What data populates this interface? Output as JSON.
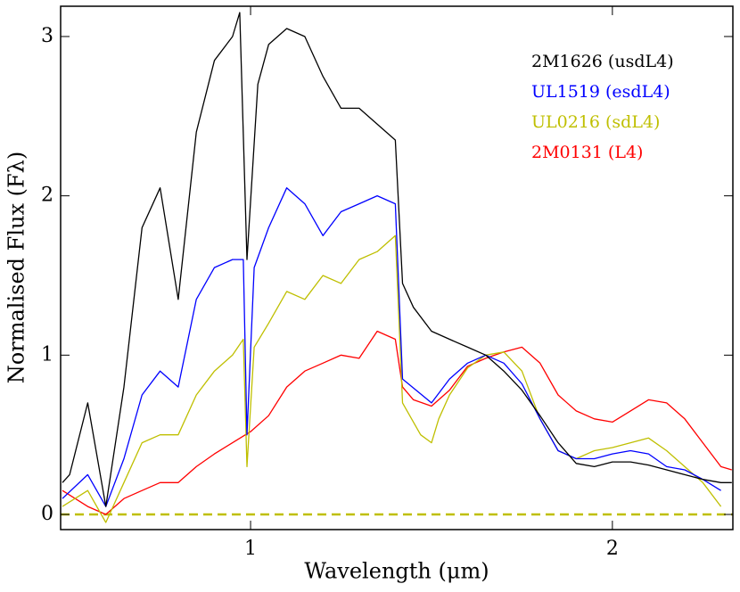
{
  "chart_data": {
    "type": "line",
    "xlabel": "Wavelength (μm)",
    "ylabel": "Normalised Flux (Fλ)",
    "xlim": [
      0.475,
      2.333
    ],
    "ylim": [
      -0.095,
      3.19
    ],
    "xticks": [
      1,
      2
    ],
    "yticks": [
      0,
      1,
      2,
      3
    ],
    "legend": "upper right",
    "reference_line": {
      "value": 0,
      "color": "#bfbf00"
    },
    "series": [
      {
        "name": "2M1626 (usdL4)",
        "color": "#000000",
        "x": [
          0.48,
          0.5,
          0.55,
          0.6,
          0.65,
          0.7,
          0.75,
          0.8,
          0.85,
          0.9,
          0.95,
          0.97,
          0.99,
          1.02,
          1.05,
          1.1,
          1.15,
          1.2,
          1.25,
          1.3,
          1.35,
          1.4,
          1.42,
          1.45,
          1.5,
          1.55,
          1.6,
          1.65,
          1.7,
          1.75,
          1.8,
          1.85,
          1.9,
          1.95,
          2.0,
          2.05,
          2.1,
          2.15,
          2.2,
          2.25,
          2.3,
          2.33
        ],
        "values": [
          0.2,
          0.25,
          0.7,
          0.05,
          0.8,
          1.8,
          2.05,
          1.35,
          2.4,
          2.85,
          3.0,
          3.15,
          1.6,
          2.7,
          2.95,
          3.05,
          3.0,
          2.75,
          2.55,
          2.55,
          2.45,
          2.35,
          1.45,
          1.3,
          1.15,
          1.1,
          1.05,
          1.0,
          0.9,
          0.78,
          0.62,
          0.45,
          0.32,
          0.3,
          0.33,
          0.33,
          0.31,
          0.28,
          0.25,
          0.22,
          0.2,
          0.2
        ]
      },
      {
        "name": "UL1519 (esdL4)",
        "color": "#0000ff",
        "x": [
          0.48,
          0.55,
          0.6,
          0.65,
          0.7,
          0.75,
          0.8,
          0.85,
          0.9,
          0.95,
          0.98,
          0.99,
          1.01,
          1.05,
          1.1,
          1.15,
          1.2,
          1.25,
          1.3,
          1.35,
          1.4,
          1.42,
          1.5,
          1.55,
          1.6,
          1.65,
          1.7,
          1.75,
          1.8,
          1.85,
          1.9,
          1.95,
          2.0,
          2.05,
          2.1,
          2.15,
          2.2,
          2.25,
          2.3
        ],
        "values": [
          0.1,
          0.25,
          0.05,
          0.35,
          0.75,
          0.9,
          0.8,
          1.35,
          1.55,
          1.6,
          1.6,
          0.5,
          1.55,
          1.8,
          2.05,
          1.95,
          1.75,
          1.9,
          1.95,
          2.0,
          1.95,
          0.85,
          0.7,
          0.85,
          0.95,
          1.0,
          0.95,
          0.82,
          0.6,
          0.4,
          0.35,
          0.35,
          0.38,
          0.4,
          0.38,
          0.3,
          0.28,
          0.22,
          0.15
        ]
      },
      {
        "name": "UL0216 (sdL4)",
        "color": "#bfbf00",
        "x": [
          0.48,
          0.55,
          0.6,
          0.65,
          0.7,
          0.75,
          0.8,
          0.85,
          0.9,
          0.95,
          0.98,
          0.99,
          1.01,
          1.05,
          1.1,
          1.15,
          1.2,
          1.25,
          1.3,
          1.35,
          1.4,
          1.42,
          1.47,
          1.5,
          1.52,
          1.55,
          1.6,
          1.65,
          1.7,
          1.75,
          1.8,
          1.85,
          1.9,
          1.95,
          2.0,
          2.05,
          2.1,
          2.15,
          2.2,
          2.25,
          2.3
        ],
        "values": [
          0.05,
          0.15,
          -0.05,
          0.2,
          0.45,
          0.5,
          0.5,
          0.75,
          0.9,
          1.0,
          1.1,
          0.3,
          1.05,
          1.2,
          1.4,
          1.35,
          1.5,
          1.45,
          1.6,
          1.65,
          1.75,
          0.7,
          0.5,
          0.45,
          0.6,
          0.75,
          0.92,
          1.0,
          1.02,
          0.9,
          0.6,
          0.4,
          0.35,
          0.4,
          0.42,
          0.45,
          0.48,
          0.4,
          0.3,
          0.2,
          0.05
        ]
      },
      {
        "name": "2M0131 (L4)",
        "color": "#ff0000",
        "x": [
          0.48,
          0.55,
          0.6,
          0.65,
          0.7,
          0.75,
          0.8,
          0.85,
          0.9,
          0.95,
          1.0,
          1.05,
          1.1,
          1.15,
          1.2,
          1.25,
          1.3,
          1.35,
          1.4,
          1.42,
          1.45,
          1.5,
          1.55,
          1.6,
          1.65,
          1.7,
          1.75,
          1.8,
          1.85,
          1.9,
          1.95,
          2.0,
          2.05,
          2.1,
          2.15,
          2.2,
          2.25,
          2.3,
          2.33
        ],
        "values": [
          0.15,
          0.05,
          0.0,
          0.1,
          0.15,
          0.2,
          0.2,
          0.3,
          0.38,
          0.45,
          0.52,
          0.62,
          0.8,
          0.9,
          0.95,
          1.0,
          0.98,
          1.15,
          1.1,
          0.8,
          0.72,
          0.68,
          0.78,
          0.93,
          0.98,
          1.02,
          1.05,
          0.95,
          0.75,
          0.65,
          0.6,
          0.58,
          0.65,
          0.72,
          0.7,
          0.6,
          0.45,
          0.3,
          0.28
        ]
      }
    ]
  }
}
